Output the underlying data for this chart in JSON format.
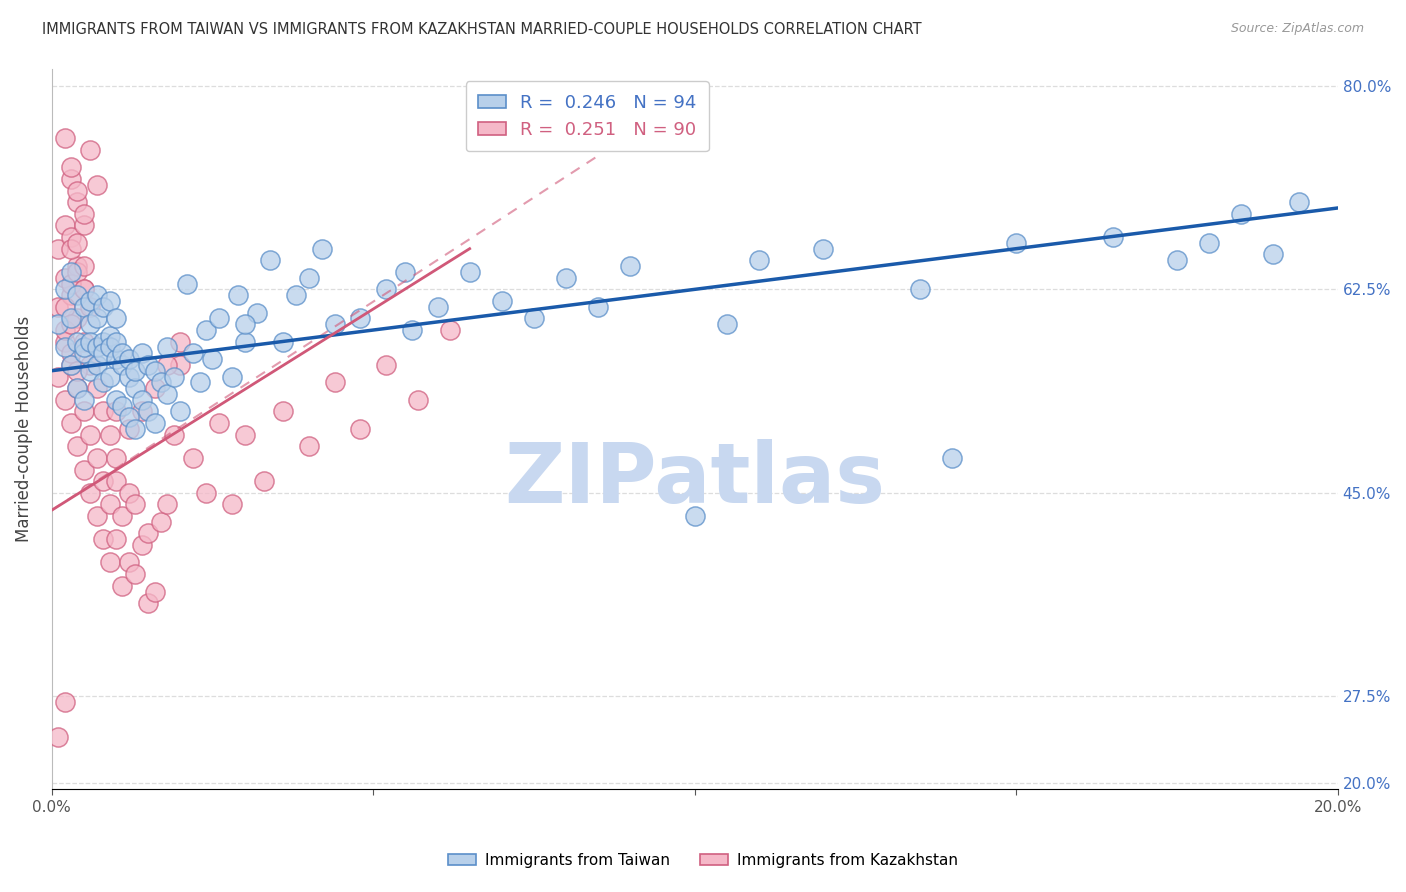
{
  "title": "IMMIGRANTS FROM TAIWAN VS IMMIGRANTS FROM KAZAKHSTAN MARRIED-COUPLE HOUSEHOLDS CORRELATION CHART",
  "source": "Source: ZipAtlas.com",
  "ylabel": "Married-couple Households",
  "legend_taiwan": "Immigrants from Taiwan",
  "legend_kazakhstan": "Immigrants from Kazakhstan",
  "R_taiwan": 0.246,
  "N_taiwan": 94,
  "R_kazakhstan": 0.251,
  "N_kazakhstan": 90,
  "xlim": [
    0.0,
    0.2
  ],
  "ylim": [
    0.195,
    0.815
  ],
  "ytick_vals": [
    0.2,
    0.275,
    0.45,
    0.625,
    0.8
  ],
  "ytick_labels": [
    "20.0%",
    "27.5%",
    "45.0%",
    "62.5%",
    "80.0%"
  ],
  "color_taiwan_fill": "#b8d0ea",
  "color_taiwan_edge": "#5b8fc9",
  "color_taiwan_line": "#1a5aaa",
  "color_kaz_fill": "#f5b8c8",
  "color_kaz_edge": "#d06080",
  "color_kaz_line": "#d05878",
  "watermark_color": "#c8d8f0",
  "taiwan_x": [
    0.001,
    0.002,
    0.002,
    0.003,
    0.003,
    0.003,
    0.004,
    0.004,
    0.004,
    0.005,
    0.005,
    0.005,
    0.005,
    0.006,
    0.006,
    0.006,
    0.006,
    0.007,
    0.007,
    0.007,
    0.007,
    0.008,
    0.008,
    0.008,
    0.008,
    0.009,
    0.009,
    0.009,
    0.009,
    0.01,
    0.01,
    0.01,
    0.01,
    0.011,
    0.011,
    0.011,
    0.012,
    0.012,
    0.012,
    0.013,
    0.013,
    0.013,
    0.014,
    0.014,
    0.015,
    0.015,
    0.016,
    0.016,
    0.017,
    0.018,
    0.018,
    0.019,
    0.02,
    0.021,
    0.022,
    0.023,
    0.024,
    0.025,
    0.026,
    0.028,
    0.029,
    0.03,
    0.032,
    0.034,
    0.036,
    0.038,
    0.04,
    0.042,
    0.044,
    0.048,
    0.052,
    0.056,
    0.06,
    0.065,
    0.07,
    0.075,
    0.08,
    0.085,
    0.09,
    0.1,
    0.11,
    0.12,
    0.135,
    0.15,
    0.165,
    0.175,
    0.18,
    0.185,
    0.19,
    0.194,
    0.03,
    0.055,
    0.105,
    0.14
  ],
  "taiwan_y": [
    0.595,
    0.625,
    0.575,
    0.64,
    0.6,
    0.56,
    0.62,
    0.58,
    0.54,
    0.61,
    0.57,
    0.53,
    0.575,
    0.595,
    0.555,
    0.615,
    0.58,
    0.6,
    0.56,
    0.62,
    0.575,
    0.58,
    0.545,
    0.61,
    0.57,
    0.585,
    0.55,
    0.615,
    0.575,
    0.565,
    0.53,
    0.58,
    0.6,
    0.56,
    0.525,
    0.57,
    0.55,
    0.515,
    0.565,
    0.54,
    0.505,
    0.555,
    0.53,
    0.57,
    0.52,
    0.56,
    0.51,
    0.555,
    0.545,
    0.535,
    0.575,
    0.55,
    0.52,
    0.63,
    0.57,
    0.545,
    0.59,
    0.565,
    0.6,
    0.55,
    0.62,
    0.58,
    0.605,
    0.65,
    0.58,
    0.62,
    0.635,
    0.66,
    0.595,
    0.6,
    0.625,
    0.59,
    0.61,
    0.64,
    0.615,
    0.6,
    0.635,
    0.61,
    0.645,
    0.43,
    0.65,
    0.66,
    0.625,
    0.665,
    0.67,
    0.65,
    0.665,
    0.69,
    0.655,
    0.7,
    0.595,
    0.64,
    0.595,
    0.48
  ],
  "kazakhstan_x": [
    0.001,
    0.001,
    0.001,
    0.002,
    0.002,
    0.002,
    0.002,
    0.003,
    0.003,
    0.003,
    0.003,
    0.004,
    0.004,
    0.004,
    0.004,
    0.005,
    0.005,
    0.005,
    0.005,
    0.006,
    0.006,
    0.006,
    0.006,
    0.007,
    0.007,
    0.007,
    0.008,
    0.008,
    0.008,
    0.009,
    0.009,
    0.009,
    0.01,
    0.01,
    0.01,
    0.011,
    0.011,
    0.012,
    0.012,
    0.013,
    0.013,
    0.014,
    0.015,
    0.015,
    0.016,
    0.017,
    0.018,
    0.019,
    0.02,
    0.022,
    0.024,
    0.026,
    0.028,
    0.03,
    0.033,
    0.036,
    0.04,
    0.044,
    0.048,
    0.052,
    0.057,
    0.062,
    0.01,
    0.012,
    0.014,
    0.016,
    0.018,
    0.02,
    0.003,
    0.004,
    0.005,
    0.006,
    0.007,
    0.002,
    0.003,
    0.004,
    0.005,
    0.001,
    0.002,
    0.003,
    0.003,
    0.004,
    0.004,
    0.005,
    0.005,
    0.002,
    0.002,
    0.003,
    0.003,
    0.004
  ],
  "kazakhstan_y": [
    0.55,
    0.61,
    0.66,
    0.53,
    0.58,
    0.635,
    0.68,
    0.51,
    0.56,
    0.62,
    0.67,
    0.49,
    0.54,
    0.6,
    0.645,
    0.47,
    0.52,
    0.58,
    0.625,
    0.45,
    0.5,
    0.56,
    0.61,
    0.43,
    0.48,
    0.54,
    0.41,
    0.46,
    0.52,
    0.39,
    0.44,
    0.5,
    0.41,
    0.46,
    0.52,
    0.37,
    0.43,
    0.39,
    0.45,
    0.38,
    0.44,
    0.405,
    0.355,
    0.415,
    0.365,
    0.425,
    0.44,
    0.5,
    0.56,
    0.48,
    0.45,
    0.51,
    0.44,
    0.5,
    0.46,
    0.52,
    0.49,
    0.545,
    0.505,
    0.56,
    0.53,
    0.59,
    0.48,
    0.505,
    0.52,
    0.54,
    0.56,
    0.58,
    0.72,
    0.7,
    0.68,
    0.745,
    0.715,
    0.755,
    0.73,
    0.71,
    0.69,
    0.24,
    0.27,
    0.63,
    0.66,
    0.64,
    0.665,
    0.645,
    0.625,
    0.59,
    0.61,
    0.57,
    0.595,
    0.555
  ]
}
